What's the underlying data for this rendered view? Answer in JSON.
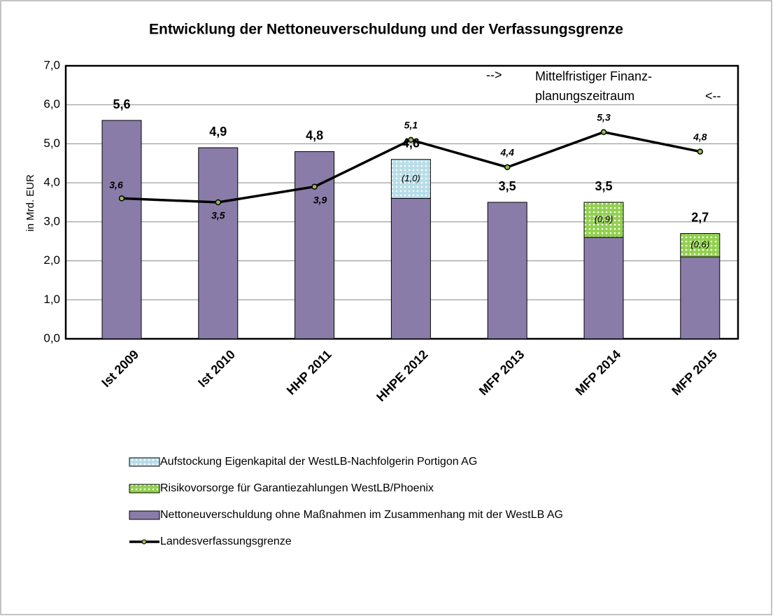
{
  "chart_data": {
    "type": "stacked_bar_line",
    "title": "Entwicklung der Nettoneuverschuldung und der Verfassungsgrenze",
    "y_label": "in Mrd. EUR",
    "annotations": [
      "-->",
      "Mittelfristiger Finanz-",
      "planungszeitraum",
      "<--"
    ],
    "categories": [
      "Ist 2009",
      "Ist 2010",
      "HHP 2011",
      "HHPE 2012",
      "MFP 2013",
      "MFP 2014",
      "MFP 2015"
    ],
    "series": [
      {
        "name": "Nettoneuverschuldung ohne Maßnahmen im Zusammenhang mit der WestLB AG",
        "color": "#8a7ca8",
        "values": [
          5.6,
          4.9,
          4.8,
          3.6,
          3.5,
          2.6,
          2.1
        ]
      },
      {
        "name": "Aufstockung Eigenkapital der WestLB-Nachfolgerin Portigon AG",
        "color": "#b7dde8",
        "values": [
          null,
          null,
          null,
          1.0,
          null,
          null,
          null
        ],
        "value_labels": [
          null,
          null,
          null,
          "(1,0)",
          null,
          null,
          null
        ]
      },
      {
        "name": "Risikovorsorge für Garantiezahlungen WestLB/Phoenix",
        "color": "#92d050",
        "values": [
          null,
          null,
          null,
          null,
          null,
          0.9,
          0.6
        ],
        "value_labels": [
          null,
          null,
          null,
          null,
          null,
          "(0,9)",
          "(0,6)"
        ]
      },
      {
        "name": "Landesverfassungsgrenze",
        "type": "line",
        "color": "#000000",
        "values": [
          3.6,
          3.5,
          3.9,
          5.1,
          4.4,
          5.3,
          4.8
        ],
        "value_labels": [
          "3,6",
          "3,5",
          "3,9",
          "5,1",
          "4,4",
          "5,3",
          "4,8"
        ]
      }
    ],
    "totals": [
      5.6,
      4.9,
      4.8,
      4.6,
      3.5,
      3.5,
      2.7
    ],
    "total_labels": [
      "5,6",
      "4,9",
      "4,8",
      "4,6",
      "3,5",
      "3,5",
      "2,7"
    ],
    "ylim": [
      0,
      7
    ],
    "yticks": [
      {
        "value": 0,
        "label": "0,0"
      },
      {
        "value": 1,
        "label": "1,0"
      },
      {
        "value": 2,
        "label": "2,0"
      },
      {
        "value": 3,
        "label": "3,0"
      },
      {
        "value": 4,
        "label": "4,0"
      },
      {
        "value": 5,
        "label": "5,0"
      },
      {
        "value": 6,
        "label": "6,0"
      },
      {
        "value": 7,
        "label": "7,0"
      }
    ],
    "grid": true
  }
}
